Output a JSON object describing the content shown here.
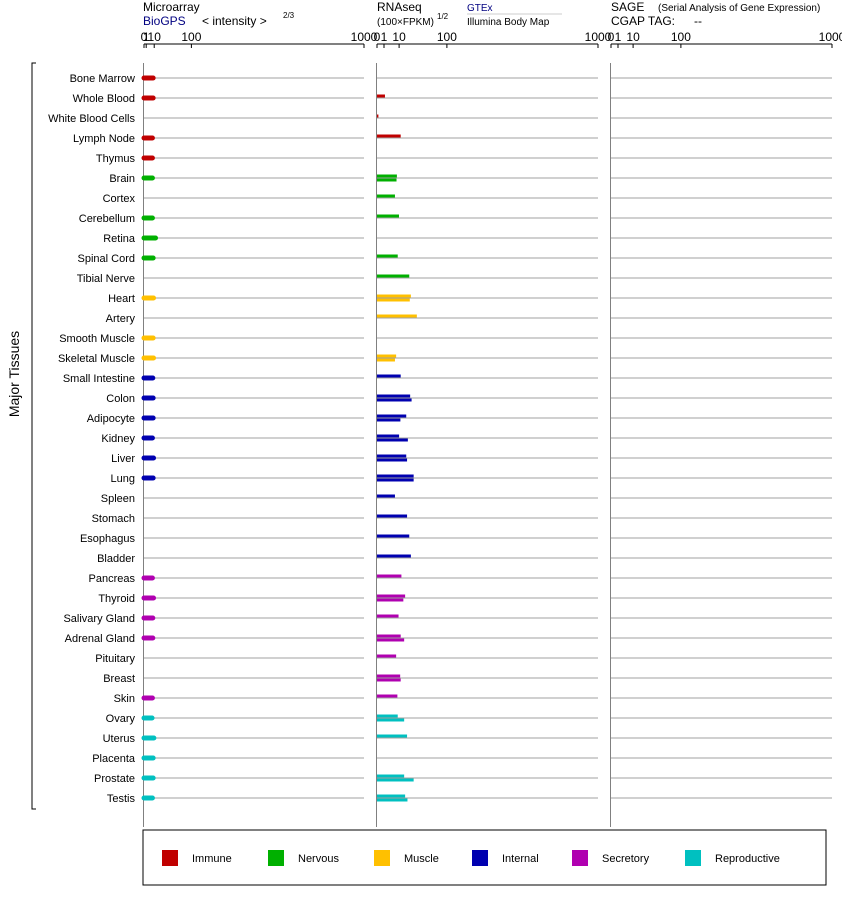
{
  "header": {
    "microarray_title": "Microarray",
    "microarray_source": "BioGPS",
    "microarray_unit": "< intensity >",
    "microarray_unit_exp": "2/3",
    "rnaseq_title": "RNAseq",
    "rnaseq_unit": "(100×FPKM)",
    "rnaseq_unit_exp": "1/2",
    "rnaseq_source_gtex": "GTEx",
    "rnaseq_source_ibm": "Illumina Body Map",
    "sage_title": "SAGE",
    "sage_subtitle": "(Serial Analysis of Gene Expression)",
    "sage_tag": "CGAP TAG:",
    "sage_tag_value": "--"
  },
  "axis_label": "Major Tissues",
  "colors": {
    "Immune": "#c00000",
    "Nervous": "#00b000",
    "Muscle": "#ffc000",
    "Internal": "#0000b0",
    "Secretory": "#b000b0",
    "Reproductive": "#00c0c0",
    "gridline": "#999999",
    "axis": "#000000",
    "source_link": "#000080"
  },
  "legend": [
    {
      "label": "Immune",
      "color": "#c00000"
    },
    {
      "label": "Nervous",
      "color": "#00b000"
    },
    {
      "label": "Muscle",
      "color": "#ffc000"
    },
    {
      "label": "Internal",
      "color": "#0000b0"
    },
    {
      "label": "Secretory",
      "color": "#b000b0"
    },
    {
      "label": "Reproductive",
      "color": "#00c0c0"
    }
  ],
  "chart_data": [
    {
      "type": "bar",
      "panel": "Microarray",
      "scale": "power-2/3",
      "ticks": [
        "0",
        "1",
        "10",
        "100",
        "1000"
      ],
      "xlim": [
        0,
        1000
      ],
      "categories": [
        "Bone Marrow",
        "Whole Blood",
        "White Blood Cells",
        "Lymph Node",
        "Thymus",
        "Brain",
        "Cortex",
        "Cerebellum",
        "Retina",
        "Spinal Cord",
        "Tibial Nerve",
        "Heart",
        "Artery",
        "Smooth Muscle",
        "Skeletal Muscle",
        "Small Intestine",
        "Colon",
        "Adipocyte",
        "Kidney",
        "Liver",
        "Lung",
        "Spleen",
        "Stomach",
        "Esophagus",
        "Bladder",
        "Pancreas",
        "Thyroid",
        "Salivary Gland",
        "Adrenal Gland",
        "Pituitary",
        "Breast",
        "Skin",
        "Ovary",
        "Uterus",
        "Placenta",
        "Prostate",
        "Testis"
      ],
      "groups": [
        "Immune",
        "Immune",
        "Immune",
        "Immune",
        "Immune",
        "Nervous",
        "Nervous",
        "Nervous",
        "Nervous",
        "Nervous",
        "Nervous",
        "Muscle",
        "Muscle",
        "Muscle",
        "Muscle",
        "Internal",
        "Internal",
        "Internal",
        "Internal",
        "Internal",
        "Internal",
        "Internal",
        "Internal",
        "Internal",
        "Internal",
        "Secretory",
        "Secretory",
        "Secretory",
        "Secretory",
        "Secretory",
        "Secretory",
        "Secretory",
        "Reproductive",
        "Reproductive",
        "Reproductive",
        "Reproductive",
        "Reproductive"
      ],
      "series": [
        {
          "values": [
            8.5,
            8.5,
            null,
            7.5,
            7.5,
            7.5,
            null,
            7.5,
            12,
            8.5,
            null,
            9,
            null,
            8.5,
            9,
            8,
            8.5,
            8.5,
            7.5,
            9,
            8.5,
            null,
            null,
            null,
            null,
            7.5,
            9,
            8,
            8,
            null,
            null,
            7.5,
            7,
            9.5,
            8.5,
            8.5,
            7.5
          ]
        }
      ]
    },
    {
      "type": "bar",
      "panel": "RNAseq",
      "scale": "square-root",
      "ticks": [
        "0",
        "1",
        "10",
        "100",
        "1000"
      ],
      "xlim": [
        0,
        1000
      ],
      "categories": [
        "Bone Marrow",
        "Whole Blood",
        "White Blood Cells",
        "Lymph Node",
        "Thymus",
        "Brain",
        "Cortex",
        "Cerebellum",
        "Retina",
        "Spinal Cord",
        "Tibial Nerve",
        "Heart",
        "Artery",
        "Smooth Muscle",
        "Skeletal Muscle",
        "Small Intestine",
        "Colon",
        "Adipocyte",
        "Kidney",
        "Liver",
        "Lung",
        "Spleen",
        "Stomach",
        "Esophagus",
        "Bladder",
        "Pancreas",
        "Thyroid",
        "Salivary Gland",
        "Adrenal Gland",
        "Pituitary",
        "Breast",
        "Skin",
        "Ovary",
        "Uterus",
        "Placenta",
        "Prostate",
        "Testis"
      ],
      "groups": [
        "Immune",
        "Immune",
        "Immune",
        "Immune",
        "Immune",
        "Nervous",
        "Nervous",
        "Nervous",
        "Nervous",
        "Nervous",
        "Nervous",
        "Muscle",
        "Muscle",
        "Muscle",
        "Muscle",
        "Internal",
        "Internal",
        "Internal",
        "Internal",
        "Internal",
        "Internal",
        "Internal",
        "Internal",
        "Internal",
        "Internal",
        "Secretory",
        "Secretory",
        "Secretory",
        "Secretory",
        "Secretory",
        "Secretory",
        "Secretory",
        "Reproductive",
        "Reproductive",
        "Reproductive",
        "Reproductive",
        "Reproductive"
      ],
      "series": [
        {
          "name": "GTEx",
          "values": [
            null,
            null,
            null,
            null,
            null,
            null,
            null,
            null,
            null,
            null,
            null,
            null,
            null,
            null,
            null,
            null,
            null,
            null,
            null,
            null,
            null,
            null,
            null,
            null,
            null,
            null,
            null,
            null,
            null,
            null,
            null,
            null,
            null,
            null,
            null,
            null,
            null
          ]
        },
        {
          "values": [
            null,
            1.3,
            0.04,
            11.5,
            null,
            8.1,
            6.6,
            9.9,
            null,
            8.8,
            21.3,
            23.5,
            32.5,
            null,
            7.5,
            11.5,
            22.5,
            17.5,
            10,
            17.5,
            27.5,
            6.6,
            18.5,
            21.3,
            23.5,
            12.2,
            16.2,
            9.5,
            11.5,
            7.5,
            11,
            8.5,
            8.8,
            18.5,
            null,
            15.1,
            16.2
          ]
        },
        {
          "values": [
            null,
            null,
            null,
            null,
            null,
            7.8,
            null,
            null,
            null,
            null,
            null,
            22,
            null,
            null,
            6.6,
            null,
            24.5,
            11.2,
            19.5,
            18.5,
            27.5,
            null,
            null,
            null,
            null,
            null,
            14.2,
            null,
            15.1,
            null,
            11.5,
            null,
            15.1,
            null,
            null,
            27.5,
            19
          ]
        }
      ]
    },
    {
      "type": "bar",
      "panel": "SAGE",
      "scale": "square-root",
      "ticks": [
        "0",
        "1",
        "10",
        "100",
        "1000"
      ],
      "xlim": [
        0,
        1000
      ],
      "categories": [],
      "series": []
    }
  ]
}
